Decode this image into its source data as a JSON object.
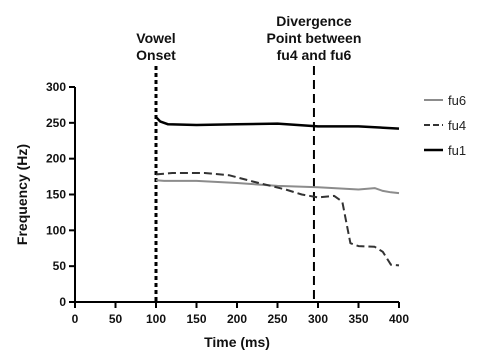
{
  "chart_data": {
    "type": "line",
    "xlabel": "Time (ms)",
    "ylabel": "Frequency (Hz)",
    "xlim": [
      0,
      400
    ],
    "ylim": [
      0,
      300
    ],
    "x_ticks": [
      "0",
      "50",
      "100",
      "150",
      "200",
      "250",
      "300",
      "350",
      "400"
    ],
    "y_ticks": [
      "0",
      "50",
      "100",
      "150",
      "200",
      "250",
      "300"
    ],
    "grid": false,
    "legend_position": "right",
    "annotations": [
      {
        "label_lines": [
          "Vowel",
          "Onset"
        ],
        "x": 100
      },
      {
        "label_lines": [
          "Divergence",
          "Point between",
          "fu4 and fu6"
        ],
        "x": 295
      }
    ],
    "series": [
      {
        "name": "fu6",
        "color": "#8c8c8c",
        "dash": "solid",
        "x": [
          100,
          110,
          150,
          200,
          250,
          300,
          350,
          370,
          380,
          390,
          400
        ],
        "y": [
          170,
          169,
          169,
          166,
          162,
          160,
          157,
          159,
          155,
          153,
          152
        ]
      },
      {
        "name": "fu4",
        "color": "#333333",
        "dash": "dashed",
        "x": [
          100,
          120,
          160,
          190,
          220,
          260,
          280,
          300,
          320,
          330,
          340,
          350,
          370,
          380,
          390,
          400
        ],
        "y": [
          178,
          180,
          180,
          177,
          168,
          157,
          150,
          146,
          148,
          140,
          82,
          78,
          77,
          70,
          52,
          51
        ]
      },
      {
        "name": "fu1",
        "color": "#000000",
        "dash": "solid",
        "x": [
          100,
          105,
          115,
          150,
          200,
          250,
          300,
          350,
          400
        ],
        "y": [
          258,
          252,
          248,
          247,
          248,
          249,
          245,
          245,
          242
        ]
      }
    ]
  }
}
